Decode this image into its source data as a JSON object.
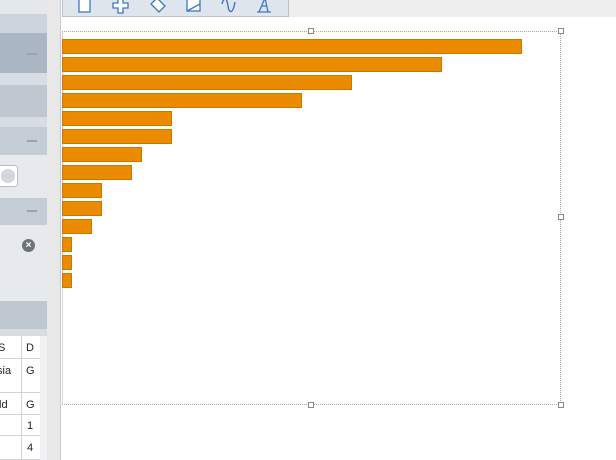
{
  "left_panel": {
    "table": {
      "header": [
        "S",
        "D"
      ],
      "rows": [
        [
          "sia",
          "G"
        ],
        [
          "ld",
          "G"
        ],
        [
          "",
          "1"
        ],
        [
          "",
          "4"
        ]
      ]
    }
  },
  "toolbar": {
    "icons": [
      "document-icon",
      "add-icon",
      "edit-icon",
      "image-icon",
      "curve-icon",
      "text-style-icon"
    ]
  },
  "colors": {
    "bar_fill": "#eb8c00",
    "panel": "#d8dde4",
    "toolbar": "#dfe5ec"
  },
  "chart_data": {
    "type": "bar",
    "orientation": "horizontal",
    "values": [
      46,
      38,
      29,
      24,
      11,
      11,
      8,
      7,
      4,
      4,
      3,
      1,
      1,
      1
    ],
    "xlim": [
      0,
      50
    ]
  }
}
